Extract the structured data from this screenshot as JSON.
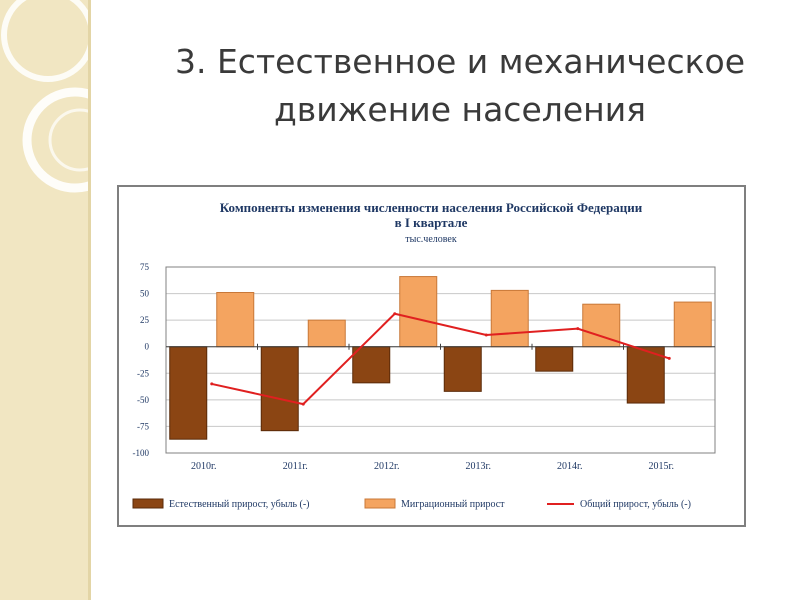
{
  "slide": {
    "title_line1": "3. Естественное  и механическое",
    "title_line2": "движение населения"
  },
  "colors": {
    "natural": "#8b4513",
    "natural_dark": "#5a2a08",
    "migration": "#f4a460",
    "migration_dark": "#c87838",
    "total": "#e02020",
    "strip": "#f1e6c2"
  },
  "chart_data": {
    "type": "bar",
    "title": "Компоненты изменения численности населения Российской Федерации в I квартале",
    "title_line1": "Компоненты изменения численности населения Российской Федерации",
    "title_line2": "в I квартале",
    "subtitle": "тыс.человек",
    "categories": [
      "2010г.",
      "2011г.",
      "2012г.",
      "2013г.",
      "2014г.",
      "2015г."
    ],
    "ylim": [
      -100,
      75
    ],
    "yticks": [
      75,
      50,
      25,
      0,
      -25,
      -50,
      -75,
      -100
    ],
    "grid": true,
    "legend_position": "bottom",
    "series": [
      {
        "name": "Естественный  прирост, убыль (-)",
        "type": "bar",
        "values": [
          -87,
          -79,
          -34,
          -42,
          -23,
          -53
        ]
      },
      {
        "name": "Миграционный прирост",
        "type": "bar",
        "values": [
          51,
          25,
          66,
          53,
          40,
          42
        ]
      },
      {
        "name": "Общий прирост, убыль (-)",
        "type": "line",
        "values": [
          -35,
          -54,
          31,
          11,
          17,
          -11
        ]
      }
    ]
  }
}
